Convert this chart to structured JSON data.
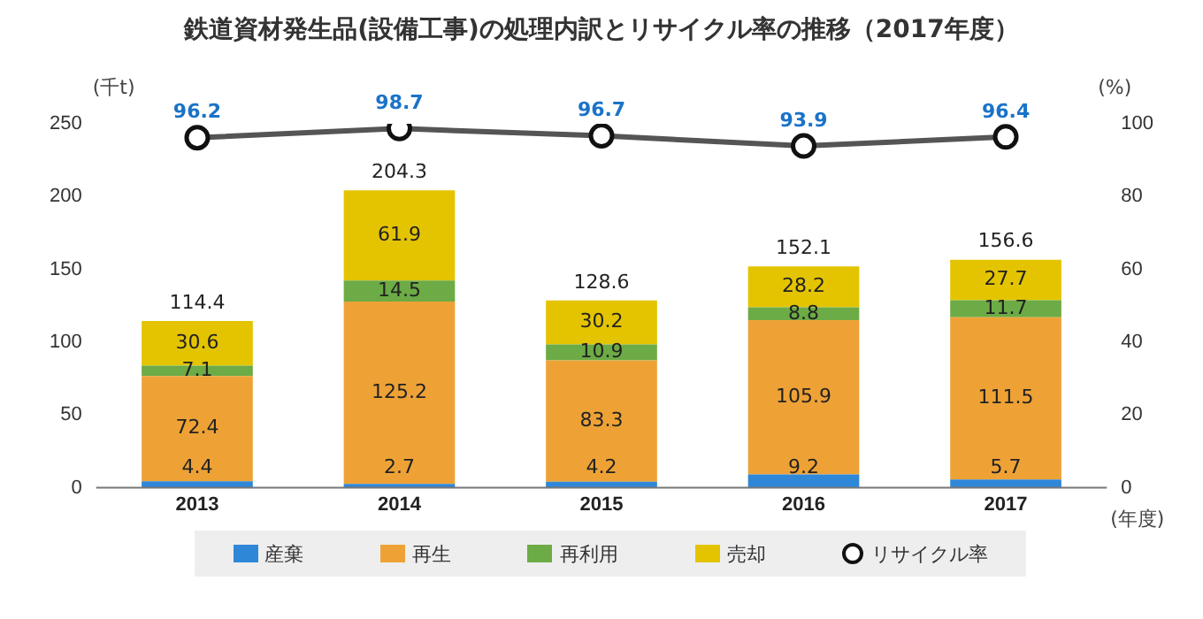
{
  "chart_data": {
    "type": "bar",
    "title": "鉄道資材発生品(設備工事)の処理内訳とリサイクル率の推移（2017年度）",
    "ylabel": "(千t)",
    "y2label": "(%)",
    "xlabel": "(年度)",
    "categories": [
      "2013",
      "2014",
      "2015",
      "2016",
      "2017"
    ],
    "stacked": true,
    "data_labels": true,
    "legend": "bottom",
    "grid": false,
    "totals": [
      "114.4",
      "204.3",
      "128.6",
      "152.1",
      "156.6"
    ],
    "ylim": [
      0,
      250
    ],
    "yticks": [
      0,
      50,
      100,
      150,
      200,
      250
    ],
    "y2lim": [
      0,
      100
    ],
    "y2ticks": [
      0,
      20,
      40,
      60,
      80,
      100
    ],
    "marker": "circle",
    "series": [
      {
        "name": "産棄",
        "color": "#2f87d8",
        "values": [
          4.4,
          2.7,
          4.2,
          9.2,
          5.7
        ]
      },
      {
        "name": "再生",
        "color": "#eea236",
        "values": [
          72.4,
          125.2,
          83.3,
          105.9,
          111.5
        ]
      },
      {
        "name": "再利用",
        "color": "#6cab45",
        "values": [
          7.1,
          14.5,
          10.9,
          8.8,
          11.7
        ]
      },
      {
        "name": "売却",
        "color": "#e4c400",
        "values": [
          30.6,
          61.9,
          30.2,
          28.2,
          27.7
        ]
      },
      {
        "name": "リサイクル率",
        "type": "line",
        "axis": "y2",
        "color": "#555555",
        "values": [
          96.2,
          98.7,
          96.7,
          93.9,
          96.4
        ]
      }
    ]
  }
}
